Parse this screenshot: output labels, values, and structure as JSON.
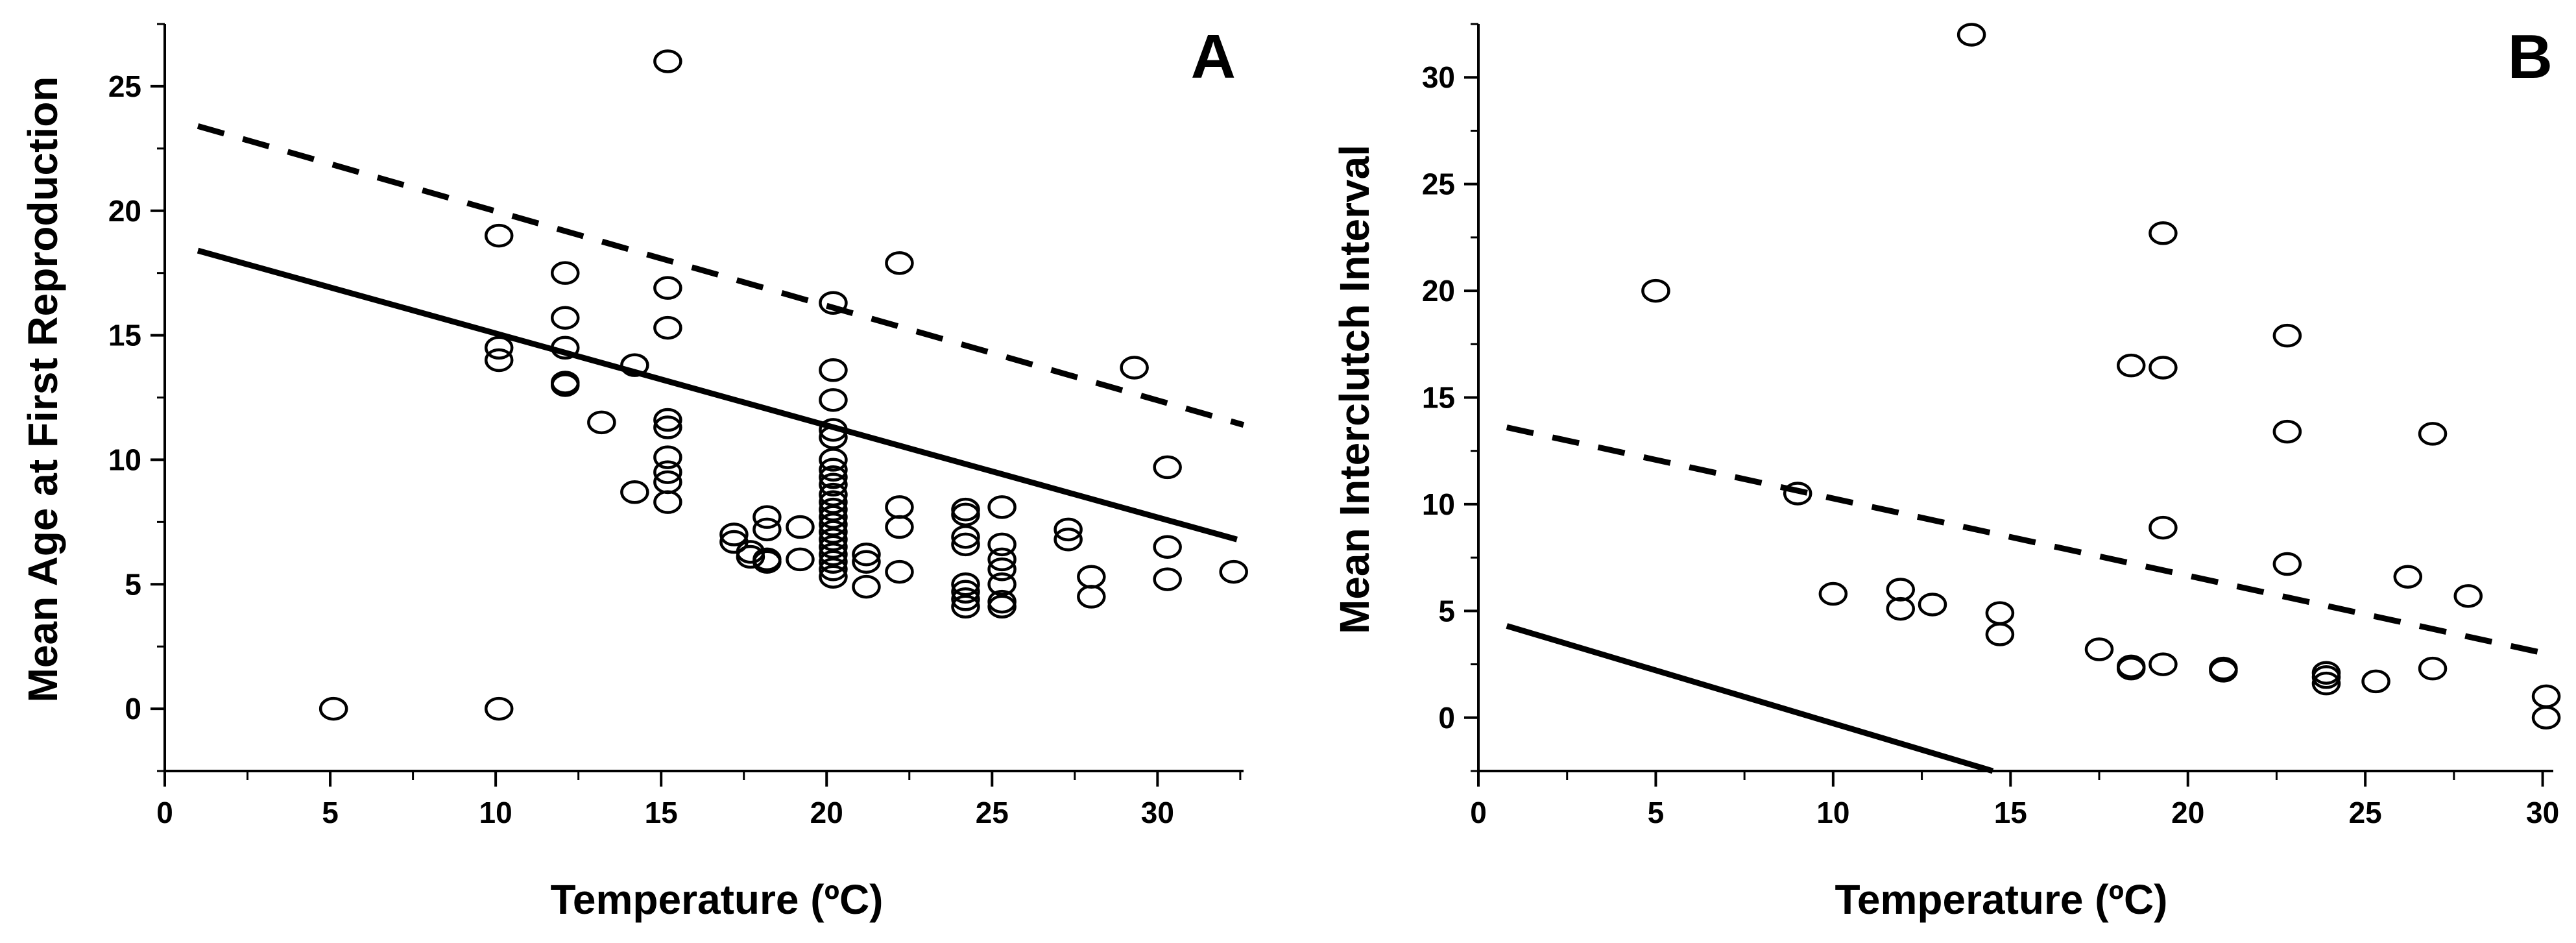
{
  "chart_data": [
    {
      "type": "scatter",
      "panel": "A",
      "xlabel": "Temperature (ºC)",
      "ylabel": "Mean Age at First Reproduction",
      "xlim": [
        0,
        32.6
      ],
      "ylim": [
        -2.5,
        27.5
      ],
      "x_ticks": [
        0,
        5,
        10,
        15,
        20,
        25,
        30
      ],
      "y_ticks": [
        0,
        5,
        10,
        15,
        20,
        25
      ],
      "points": [
        [
          5.1,
          0
        ],
        [
          10.1,
          0
        ],
        [
          15.2,
          26
        ],
        [
          10.1,
          19
        ],
        [
          10.1,
          14.5
        ],
        [
          10.1,
          14
        ],
        [
          12.1,
          17.5
        ],
        [
          12.1,
          15.7
        ],
        [
          12.1,
          14.5
        ],
        [
          12.1,
          13.1
        ],
        [
          12.1,
          13
        ],
        [
          13.2,
          11.5
        ],
        [
          14.2,
          13.8
        ],
        [
          14.2,
          8.7
        ],
        [
          15.2,
          16.9
        ],
        [
          15.2,
          15.3
        ],
        [
          15.2,
          11.6
        ],
        [
          15.2,
          11.3
        ],
        [
          15.2,
          10.1
        ],
        [
          15.2,
          9.5
        ],
        [
          15.2,
          9.1
        ],
        [
          15.2,
          8.3
        ],
        [
          17.2,
          7
        ],
        [
          17.2,
          6.7
        ],
        [
          17.7,
          6.3
        ],
        [
          17.7,
          6.1
        ],
        [
          18.2,
          7.7
        ],
        [
          18.2,
          7.2
        ],
        [
          18.2,
          6
        ],
        [
          18.2,
          5.9
        ],
        [
          19.2,
          7.3
        ],
        [
          19.2,
          6
        ],
        [
          20.2,
          16.3
        ],
        [
          20.2,
          13.6
        ],
        [
          20.2,
          12.4
        ],
        [
          20.2,
          11.2
        ],
        [
          20.2,
          10.9
        ],
        [
          20.2,
          10
        ],
        [
          20.2,
          9.6
        ],
        [
          20.2,
          9.3
        ],
        [
          20.2,
          9
        ],
        [
          20.2,
          8.6
        ],
        [
          20.2,
          8.3
        ],
        [
          20.2,
          8
        ],
        [
          20.2,
          7.7
        ],
        [
          20.2,
          7.4
        ],
        [
          20.2,
          7.1
        ],
        [
          20.2,
          6.8
        ],
        [
          20.2,
          6.5
        ],
        [
          20.2,
          6.2
        ],
        [
          20.2,
          5.9
        ],
        [
          20.2,
          5.6
        ],
        [
          20.2,
          5.3
        ],
        [
          21.2,
          6.2
        ],
        [
          21.2,
          5.9
        ],
        [
          21.2,
          4.9
        ],
        [
          22.2,
          17.9
        ],
        [
          22.2,
          8.1
        ],
        [
          22.2,
          7.3
        ],
        [
          22.2,
          5.5
        ],
        [
          24.2,
          8
        ],
        [
          24.2,
          7.8
        ],
        [
          24.2,
          6.9
        ],
        [
          24.2,
          6.6
        ],
        [
          24.2,
          5
        ],
        [
          24.2,
          4.7
        ],
        [
          24.2,
          4.4
        ],
        [
          24.2,
          4.1
        ],
        [
          25.3,
          8.1
        ],
        [
          25.3,
          6.6
        ],
        [
          25.3,
          6
        ],
        [
          25.3,
          5.6
        ],
        [
          25.3,
          5
        ],
        [
          25.3,
          4.3
        ],
        [
          25.3,
          4.1
        ],
        [
          27.3,
          7.2
        ],
        [
          27.3,
          6.8
        ],
        [
          28,
          5.3
        ],
        [
          28,
          4.5
        ],
        [
          29.3,
          13.7
        ],
        [
          30.3,
          9.7
        ],
        [
          30.3,
          6.5
        ],
        [
          30.3,
          5.2
        ],
        [
          32.3,
          5.5
        ]
      ],
      "lines": [
        {
          "style": "dashed",
          "x": [
            1,
            32.6
          ],
          "y": [
            23.4,
            11.4
          ]
        },
        {
          "style": "solid",
          "x": [
            1,
            32.4
          ],
          "y": [
            18.4,
            6.8
          ]
        }
      ]
    },
    {
      "type": "scatter",
      "panel": "B",
      "xlabel": "Temperature (ºC)",
      "ylabel": "Mean Interclutch Interval",
      "xlim": [
        0,
        30.3
      ],
      "ylim": [
        -2.5,
        32.5
      ],
      "x_ticks": [
        0,
        5,
        10,
        15,
        20,
        25,
        30
      ],
      "y_ticks": [
        0,
        5,
        10,
        15,
        20,
        25,
        30
      ],
      "points": [
        [
          13.9,
          32
        ],
        [
          5,
          20
        ],
        [
          9,
          10.5
        ],
        [
          10,
          5.8
        ],
        [
          11.9,
          6
        ],
        [
          11.9,
          5.1
        ],
        [
          12.8,
          5.3
        ],
        [
          14.7,
          4.9
        ],
        [
          14.7,
          3.9
        ],
        [
          17.5,
          3.2
        ],
        [
          18.4,
          16.5
        ],
        [
          18.4,
          2.4
        ],
        [
          18.4,
          2.3
        ],
        [
          19.3,
          22.7
        ],
        [
          19.3,
          16.4
        ],
        [
          19.3,
          8.9
        ],
        [
          19.3,
          2.5
        ],
        [
          21,
          2.3
        ],
        [
          21,
          2.2
        ],
        [
          22.8,
          17.9
        ],
        [
          22.8,
          13.4
        ],
        [
          22.8,
          7.2
        ],
        [
          23.9,
          2.1
        ],
        [
          23.9,
          1.9
        ],
        [
          23.9,
          1.6
        ],
        [
          25.3,
          1.7
        ],
        [
          26.2,
          6.6
        ],
        [
          26.9,
          13.3
        ],
        [
          26.9,
          2.3
        ],
        [
          27.9,
          5.7
        ],
        [
          30.1,
          1
        ],
        [
          30.1,
          0
        ]
      ],
      "lines": [
        {
          "style": "dashed",
          "x": [
            0.8,
            30.1
          ],
          "y": [
            13.6,
            3
          ]
        },
        {
          "style": "solid",
          "x": [
            0.8,
            14.5
          ],
          "y": [
            4.3,
            -2.5
          ]
        }
      ]
    }
  ]
}
